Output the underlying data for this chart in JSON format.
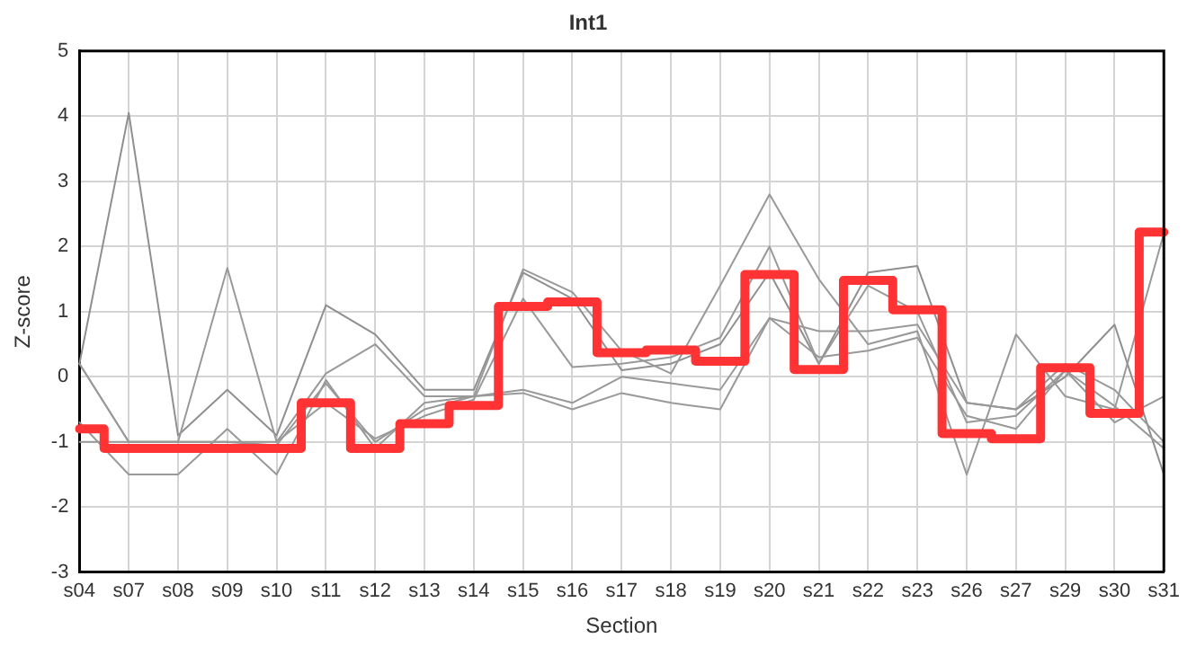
{
  "chart_data": {
    "type": "line",
    "title": "Int1",
    "xlabel": "Section",
    "ylabel": "Z-score",
    "categories": [
      "s04",
      "s07",
      "s08",
      "s09",
      "s10",
      "s11",
      "s12",
      "s13",
      "s14",
      "s15",
      "s16",
      "s17",
      "s18",
      "s19",
      "s20",
      "s21",
      "s22",
      "s23",
      "s26",
      "s27",
      "s29",
      "s30",
      "s31"
    ],
    "ylim": [
      -3,
      5
    ],
    "yticks": [
      -3,
      -2,
      -1,
      0,
      1,
      2,
      3,
      4,
      5
    ],
    "grid": true,
    "legend": false,
    "marker": "none",
    "series": [
      {
        "type": "line",
        "color": "#8f8f8f",
        "values": [
          0.2,
          4.05,
          -0.9,
          -0.2,
          -0.9,
          1.1,
          0.65,
          -0.2,
          -0.2,
          1.6,
          1.2,
          0.1,
          0.2,
          0.5,
          1.6,
          0.2,
          1.6,
          1.7,
          -0.4,
          -0.5,
          0.0,
          0.8,
          -1.5
        ]
      },
      {
        "type": "line",
        "color": "#999999",
        "values": [
          0.2,
          -1.0,
          -1.0,
          1.67,
          -1.0,
          0.05,
          0.5,
          -0.3,
          -0.3,
          1.65,
          1.3,
          0.4,
          0.05,
          1.4,
          2.8,
          1.5,
          0.5,
          0.7,
          -1.5,
          0.65,
          -0.3,
          -0.5,
          2.2
        ]
      },
      {
        "type": "line",
        "color": "#999999",
        "values": [
          -0.7,
          -1.5,
          -1.5,
          -0.8,
          -1.5,
          -0.05,
          -1.1,
          -0.4,
          -0.3,
          -0.25,
          -0.5,
          -0.25,
          -0.4,
          -0.5,
          0.9,
          0.3,
          0.4,
          0.6,
          -0.6,
          -0.8,
          0.1,
          -0.7,
          -0.3
        ]
      },
      {
        "type": "line",
        "color": "#999999",
        "values": [
          -1.0,
          -1.0,
          -1.0,
          -1.0,
          -1.05,
          -0.1,
          -1.0,
          -0.5,
          -0.3,
          -0.2,
          -0.4,
          0.0,
          -0.1,
          -0.2,
          0.9,
          0.7,
          0.7,
          0.8,
          -0.4,
          -0.5,
          0.2,
          -0.2,
          -1.0
        ]
      },
      {
        "type": "line",
        "color": "#999999",
        "values": [
          0.2,
          -1.0,
          -1.0,
          -1.0,
          -1.0,
          -0.4,
          -0.95,
          -0.6,
          -0.35,
          1.2,
          0.15,
          0.2,
          0.3,
          0.6,
          2.0,
          0.2,
          1.4,
          1.0,
          -0.7,
          -0.6,
          0.1,
          -0.45,
          -1.1
        ]
      },
      {
        "type": "step",
        "color": "#ff3333",
        "values": [
          -0.8,
          -1.1,
          -1.1,
          -1.1,
          -1.1,
          -0.4,
          -1.1,
          -0.72,
          -0.44,
          1.08,
          1.15,
          0.37,
          0.41,
          0.24,
          1.57,
          0.11,
          1.48,
          1.03,
          -0.87,
          -0.95,
          0.14,
          -0.56,
          2.22
        ]
      }
    ]
  }
}
